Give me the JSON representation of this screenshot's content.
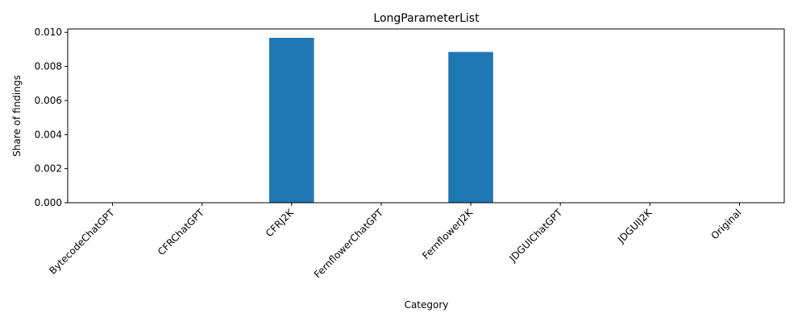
{
  "chart_data": {
    "type": "bar",
    "title": "LongParameterList",
    "xlabel": "Category",
    "ylabel": "Share of findings",
    "categories": [
      "BytecodeChatGPT",
      "CFRChatGPT",
      "CFRJ2K",
      "FernflowerChatGPT",
      "FernflowerJ2K",
      "JDGUIChatGPT",
      "JDGUIJ2K",
      "Original"
    ],
    "values": [
      0,
      0,
      0.00968,
      0,
      0.00885,
      0,
      0,
      0
    ],
    "ylim": [
      0,
      0.0102
    ],
    "yticks": [
      "0.000",
      "0.002",
      "0.004",
      "0.006",
      "0.008",
      "0.010"
    ],
    "bar_color": "#1f77b4",
    "grid": false,
    "legend": "none"
  }
}
